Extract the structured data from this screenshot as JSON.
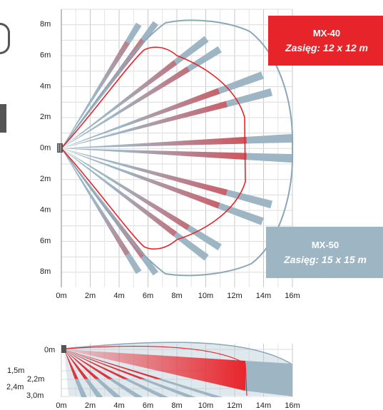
{
  "colors": {
    "mx40": "#e8242b",
    "mx50": "#9eb6c4",
    "outline_mx50": "#8ba6b6",
    "grid": "#c8c8c8"
  },
  "top_view": {
    "y_ticks": [
      "8m",
      "6m",
      "4m",
      "2m",
      "0m",
      "2m",
      "4m",
      "6m",
      "8m"
    ],
    "x_ticks": [
      "0m",
      "2m",
      "4m",
      "6m",
      "8m",
      "10m",
      "12m",
      "14m",
      "16m"
    ]
  },
  "side_view": {
    "y_labels": [
      "0m",
      "1,5m",
      "2,2m",
      "2,4m",
      "3,0m"
    ],
    "x_ticks": [
      "0m",
      "2m",
      "4m",
      "6m",
      "8m",
      "10m",
      "12m",
      "14m",
      "16m"
    ]
  },
  "badges": {
    "mx40": {
      "model": "MX-40",
      "range": "Zasięg: 12 x 12 m"
    },
    "mx50": {
      "model": "MX-50",
      "range": "Zasięg: 15 x 15 m"
    }
  }
}
